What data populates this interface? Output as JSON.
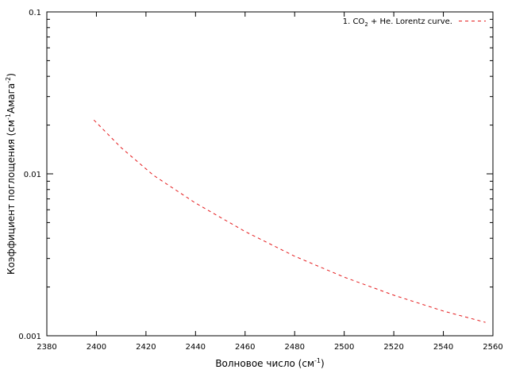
{
  "chart_data": {
    "type": "line",
    "title": "",
    "xlabel": {
      "base": "Волновое число (см",
      "sup": "-1",
      "tail": ")"
    },
    "ylabel": {
      "part1": "Коэффициент поглощения (см",
      "sup1": "-1",
      "part2": "Амага",
      "sup2": "-2",
      "part3": ")"
    },
    "xlim": [
      2380,
      2560
    ],
    "ylim": [
      0.001,
      0.1
    ],
    "yscale": "log",
    "grid": false,
    "legend_position": "top-right",
    "x_ticks": [
      2380,
      2400,
      2420,
      2440,
      2460,
      2480,
      2500,
      2520,
      2540,
      2560
    ],
    "x_tick_labels": [
      "2380",
      "2400",
      "2420",
      "2440",
      "2460",
      "2480",
      "2500",
      "2520",
      "2540",
      "2560"
    ],
    "y_ticks": [
      0.001,
      0.01,
      0.1
    ],
    "y_tick_labels": [
      "0.001",
      "0.01",
      "0.1"
    ],
    "series": [
      {
        "name": {
          "prefix": "1. CO",
          "sub": "2",
          "suffix": " + He. Lorentz curve."
        },
        "color": "#e41a1c",
        "line_style": "dashed",
        "x": [
          2399,
          2410,
          2423,
          2440,
          2460,
          2480,
          2500,
          2520,
          2540,
          2557
        ],
        "y": [
          0.0215,
          0.0145,
          0.0098,
          0.0066,
          0.0044,
          0.0031,
          0.0023,
          0.00178,
          0.00142,
          0.00121
        ]
      }
    ]
  }
}
